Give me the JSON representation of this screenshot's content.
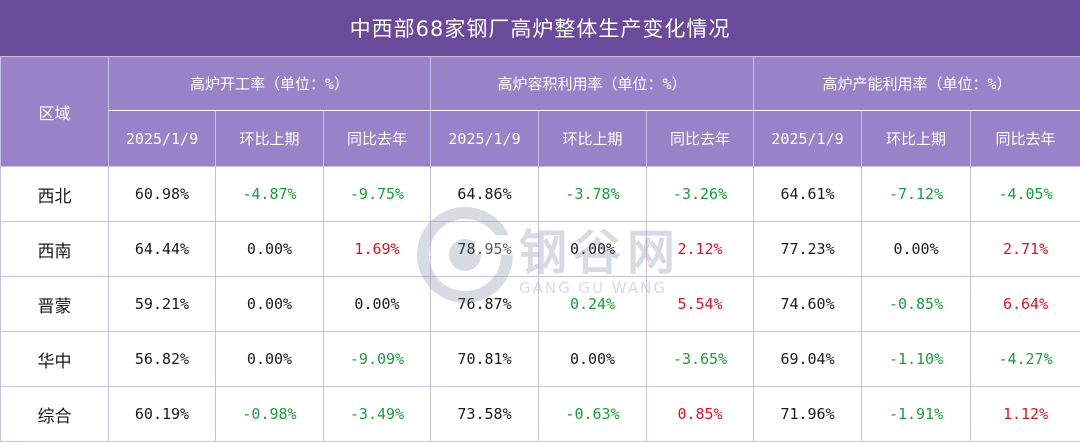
{
  "title": "中西部68家钢厂高炉整体生产变化情况",
  "header": {
    "region_label": "区域",
    "groups": [
      "高炉开工率（单位：%）",
      "高炉容积利用率（单位：%）",
      "高炉产能利用率（单位：%）"
    ],
    "subcols": [
      "2025/1/9",
      "环比上期",
      "同比去年"
    ]
  },
  "rows": [
    {
      "region": "西北",
      "cells": [
        {
          "v": "60.98%",
          "c": "neutral"
        },
        {
          "v": "-4.87%",
          "c": "green"
        },
        {
          "v": "-9.75%",
          "c": "green"
        },
        {
          "v": "64.86%",
          "c": "neutral"
        },
        {
          "v": "-3.78%",
          "c": "green"
        },
        {
          "v": "-3.26%",
          "c": "green"
        },
        {
          "v": "64.61%",
          "c": "neutral"
        },
        {
          "v": "-7.12%",
          "c": "green"
        },
        {
          "v": "-4.05%",
          "c": "green"
        }
      ]
    },
    {
      "region": "西南",
      "cells": [
        {
          "v": "64.44%",
          "c": "neutral"
        },
        {
          "v": "0.00%",
          "c": "neutral"
        },
        {
          "v": "1.69%",
          "c": "red"
        },
        {
          "v": "78.95%",
          "c": "neutral"
        },
        {
          "v": "0.00%",
          "c": "neutral"
        },
        {
          "v": "2.12%",
          "c": "red"
        },
        {
          "v": "77.23%",
          "c": "neutral"
        },
        {
          "v": "0.00%",
          "c": "neutral"
        },
        {
          "v": "2.71%",
          "c": "red"
        }
      ]
    },
    {
      "region": "晋蒙",
      "cells": [
        {
          "v": "59.21%",
          "c": "neutral"
        },
        {
          "v": "0.00%",
          "c": "neutral"
        },
        {
          "v": "0.00%",
          "c": "neutral"
        },
        {
          "v": "76.87%",
          "c": "neutral"
        },
        {
          "v": "0.24%",
          "c": "green"
        },
        {
          "v": "5.54%",
          "c": "red"
        },
        {
          "v": "74.60%",
          "c": "neutral"
        },
        {
          "v": "-0.85%",
          "c": "green"
        },
        {
          "v": "6.64%",
          "c": "red"
        }
      ]
    },
    {
      "region": "华中",
      "cells": [
        {
          "v": "56.82%",
          "c": "neutral"
        },
        {
          "v": "0.00%",
          "c": "neutral"
        },
        {
          "v": "-9.09%",
          "c": "green"
        },
        {
          "v": "70.81%",
          "c": "neutral"
        },
        {
          "v": "0.00%",
          "c": "neutral"
        },
        {
          "v": "-3.65%",
          "c": "green"
        },
        {
          "v": "69.04%",
          "c": "neutral"
        },
        {
          "v": "-1.10%",
          "c": "green"
        },
        {
          "v": "-4.27%",
          "c": "green"
        }
      ]
    },
    {
      "region": "综合",
      "cells": [
        {
          "v": "60.19%",
          "c": "neutral"
        },
        {
          "v": "-0.98%",
          "c": "green"
        },
        {
          "v": "-3.49%",
          "c": "green"
        },
        {
          "v": "73.58%",
          "c": "neutral"
        },
        {
          "v": "-0.63%",
          "c": "green"
        },
        {
          "v": "0.85%",
          "c": "red"
        },
        {
          "v": "71.96%",
          "c": "neutral"
        },
        {
          "v": "-1.91%",
          "c": "green"
        },
        {
          "v": "1.12%",
          "c": "red"
        }
      ]
    }
  ],
  "watermark": {
    "text": "钢谷网",
    "sub": "GANG GU WANG"
  },
  "colors": {
    "title_bg": "#6a4a9a",
    "header_bg": "#9a82c8",
    "negative": "#1a9e3a",
    "positive": "#e0141e"
  }
}
